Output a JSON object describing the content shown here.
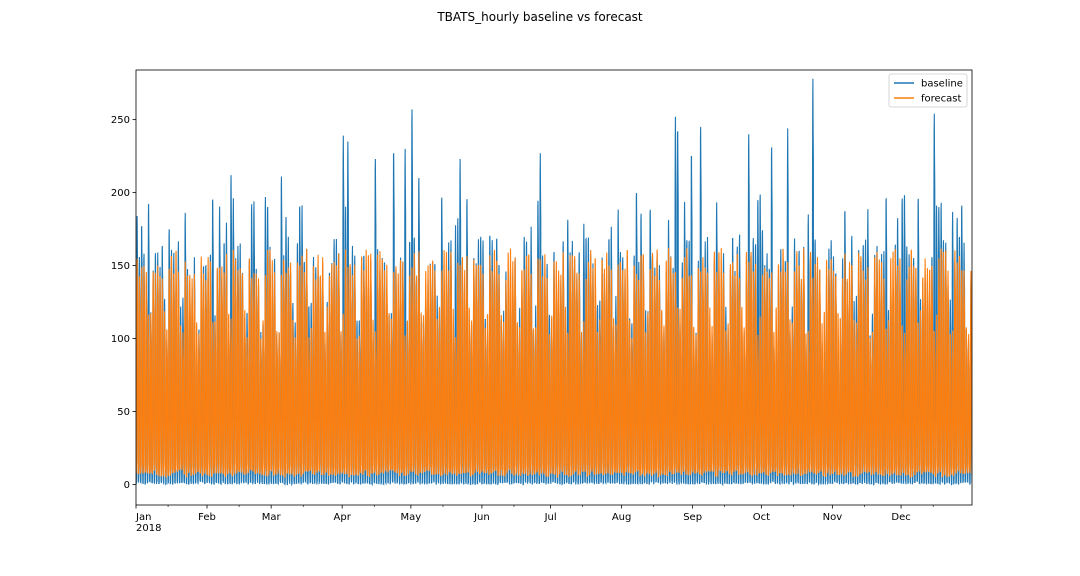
{
  "chart_data": {
    "type": "line",
    "title": "TBATS_hourly baseline vs forecast",
    "xlabel": "",
    "ylabel": "",
    "x_range": [
      "2018-01-01",
      "2018-12-31"
    ],
    "ylim": [
      -14,
      284
    ],
    "y_ticks": [
      0,
      50,
      100,
      150,
      200,
      250
    ],
    "x_ticks": [
      {
        "date": "2018-01-01",
        "label": "Jan",
        "sublabel": "2018"
      },
      {
        "date": "2018-02-01",
        "label": "Feb"
      },
      {
        "date": "2018-03-01",
        "label": "Mar"
      },
      {
        "date": "2018-04-01",
        "label": "Apr"
      },
      {
        "date": "2018-05-01",
        "label": "May"
      },
      {
        "date": "2018-06-01",
        "label": "Jun"
      },
      {
        "date": "2018-07-01",
        "label": "Jul"
      },
      {
        "date": "2018-08-01",
        "label": "Aug"
      },
      {
        "date": "2018-09-01",
        "label": "Sep"
      },
      {
        "date": "2018-10-01",
        "label": "Oct"
      },
      {
        "date": "2018-11-01",
        "label": "Nov"
      },
      {
        "date": "2018-12-01",
        "label": "Dec"
      }
    ],
    "grid": false,
    "legend_position": "top-right",
    "series": [
      {
        "name": "baseline",
        "color": "#1f77b4",
        "approx_daily_min": 0,
        "typical_daily_peak": 160,
        "spikes": [
          {
            "date": "2018-01-03",
            "value": 177
          },
          {
            "date": "2018-02-11",
            "value": 212
          },
          {
            "date": "2018-02-26",
            "value": 197
          },
          {
            "date": "2018-03-05",
            "value": 211
          },
          {
            "date": "2018-04-01",
            "value": 239
          },
          {
            "date": "2018-04-03",
            "value": 235
          },
          {
            "date": "2018-04-15",
            "value": 223
          },
          {
            "date": "2018-04-23",
            "value": 227
          },
          {
            "date": "2018-04-28",
            "value": 230
          },
          {
            "date": "2018-05-01",
            "value": 257
          },
          {
            "date": "2018-05-04",
            "value": 210
          },
          {
            "date": "2018-05-22",
            "value": 223
          },
          {
            "date": "2018-06-26",
            "value": 227
          },
          {
            "date": "2018-08-24",
            "value": 252
          },
          {
            "date": "2018-08-25",
            "value": 242
          },
          {
            "date": "2018-08-31",
            "value": 225
          },
          {
            "date": "2018-09-04",
            "value": 245
          },
          {
            "date": "2018-09-25",
            "value": 240
          },
          {
            "date": "2018-10-05",
            "value": 231
          },
          {
            "date": "2018-10-12",
            "value": 244
          },
          {
            "date": "2018-10-23",
            "value": 278
          },
          {
            "date": "2018-12-15",
            "value": 254
          }
        ]
      },
      {
        "name": "forecast",
        "color": "#ff7f0e",
        "approx_daily_min": 5,
        "typical_daily_peak": 155,
        "peak_range": [
          140,
          165
        ]
      }
    ]
  }
}
